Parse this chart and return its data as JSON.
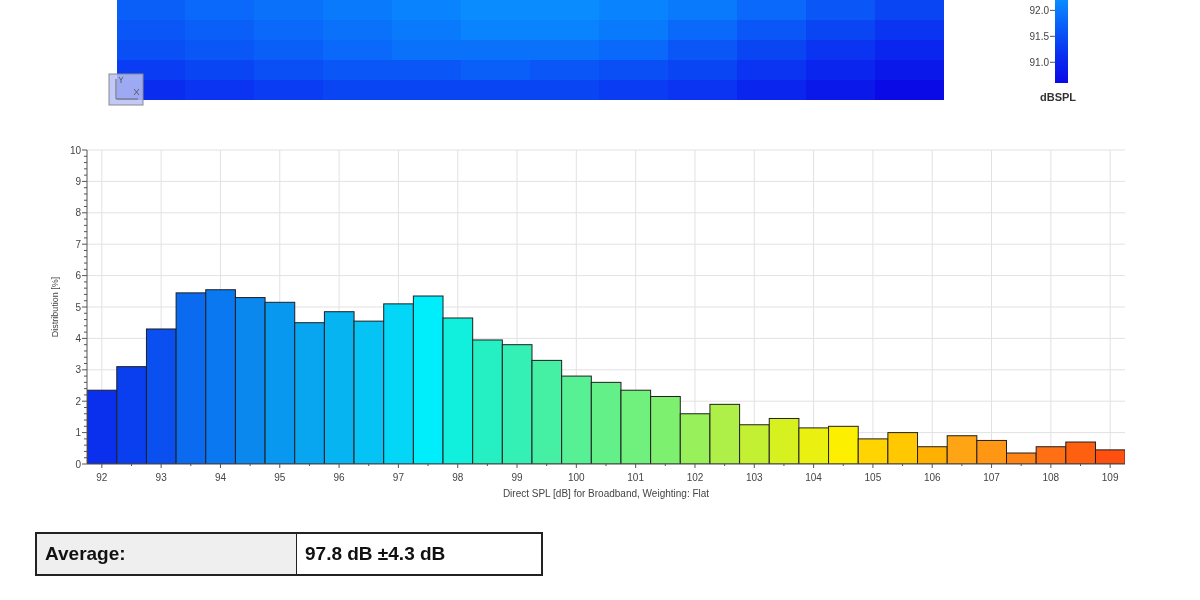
{
  "chart_data": [
    {
      "type": "heatmap",
      "clabel": "dBSPL",
      "categories": [
        null,
        null,
        null,
        null,
        null,
        null,
        null,
        null,
        null,
        null,
        null,
        null
      ],
      "y_categories": [
        null,
        null,
        null,
        null,
        null
      ],
      "cells": [
        [
          91.7,
          91.8,
          91.9,
          92.0,
          92.1,
          92.2,
          92.2,
          92.1,
          92.0,
          91.8,
          91.6,
          91.4
        ],
        [
          91.6,
          91.7,
          91.8,
          91.9,
          92.0,
          92.1,
          92.1,
          92.0,
          91.8,
          91.6,
          91.4,
          91.2
        ],
        [
          91.5,
          91.6,
          91.7,
          91.8,
          91.9,
          91.9,
          91.9,
          91.8,
          91.6,
          91.4,
          91.2,
          91.0
        ],
        [
          91.3,
          91.4,
          91.5,
          91.6,
          91.6,
          91.7,
          91.6,
          91.5,
          91.4,
          91.2,
          91.0,
          90.8
        ],
        [
          91.1,
          91.2,
          91.3,
          91.4,
          91.4,
          91.4,
          91.4,
          91.3,
          91.2,
          91.0,
          90.8,
          90.6
        ]
      ],
      "clim": [
        90.6,
        92.2
      ],
      "cticks": [
        {
          "value": 91,
          "label": "91.0"
        },
        91.5,
        {
          "value": 92,
          "label": "92.0"
        }
      ]
    },
    {
      "type": "histogram",
      "xlabel": "Direct SPL [dB] for Broadband, Weighting: Flat",
      "ylabel": "Distribution [%]",
      "bins": [
        91.75,
        92.25,
        92.75,
        93.25,
        93.75,
        94.25,
        94.75,
        95.25,
        95.75,
        96.25,
        96.75,
        97.25,
        97.75,
        98.25,
        98.75,
        99.25,
        99.75,
        100.25,
        100.75,
        101.25,
        101.75,
        102.25,
        102.75,
        103.25,
        103.75,
        104.25,
        104.75,
        105.25,
        105.75,
        106.25,
        106.75,
        107.25,
        107.75,
        108.25,
        108.75,
        109.25
      ],
      "values": [
        2.35,
        3.1,
        4.3,
        5.45,
        5.55,
        5.3,
        5.15,
        4.5,
        4.85,
        4.55,
        5.1,
        5.35,
        4.65,
        3.95,
        3.8,
        3.3,
        2.8,
        2.6,
        2.35,
        2.15,
        1.6,
        1.9,
        1.25,
        1.45,
        1.15,
        1.2,
        0.8,
        1.0,
        0.55,
        0.9,
        0.75,
        0.35,
        0.55,
        0.7,
        0.45
      ],
      "colors": [
        "#0a30ee",
        "#0a3ff0",
        "#0a50f0",
        "#0a6af0",
        "#0a78f0",
        "#0a88ee",
        "#0898f0",
        "#08a6f0",
        "#06b4f2",
        "#05c4f5",
        "#04d6f8",
        "#00eefc",
        "#10f0dc",
        "#25f0c4",
        "#35f0b4",
        "#45f0a4",
        "#58f094",
        "#64f088",
        "#70f07c",
        "#7ef070",
        "#98f05a",
        "#aef048",
        "#c4f034",
        "#d6f020",
        "#eaf010",
        "#fcf000",
        "#ffd400",
        "#ffc800",
        "#ffb000",
        "#ffa414",
        "#ff9614",
        "#ff8414",
        "#ff7014",
        "#ff6010",
        "#ff5010"
      ],
      "xlim": [
        91.75,
        109.25
      ],
      "xticks": [
        92,
        {
          "value": 92.5,
          "label": null
        },
        93,
        {
          "value": 93.5,
          "label": null
        },
        94,
        {
          "value": 94.5,
          "label": null
        },
        95,
        {
          "value": 95.5,
          "label": null
        },
        96,
        {
          "value": 96.5,
          "label": null
        },
        97,
        {
          "value": 97.5,
          "label": null
        },
        98,
        {
          "value": 98.5,
          "label": null
        },
        99,
        {
          "value": 99.5,
          "label": null
        },
        100,
        {
          "value": 100.5,
          "label": null
        },
        101,
        {
          "value": 101.5,
          "label": null
        },
        102,
        {
          "value": 102.5,
          "label": null
        },
        103,
        {
          "value": 103.5,
          "label": null
        },
        104,
        {
          "value": 104.5,
          "label": null
        },
        105,
        {
          "value": 105.5,
          "label": null
        },
        106,
        {
          "value": 106.5,
          "label": null
        },
        107,
        {
          "value": 107.5,
          "label": null
        },
        108,
        {
          "value": 108.5,
          "label": null
        },
        109
      ],
      "ylim": [
        0,
        10
      ],
      "yticks": [
        0,
        {
          "value": 0.2,
          "label": null
        },
        {
          "value": 0.4,
          "label": null
        },
        {
          "value": 0.6,
          "label": null
        },
        {
          "value": 0.8,
          "label": null
        },
        1,
        {
          "value": 1.2,
          "label": null
        },
        {
          "value": 1.4,
          "label": null
        },
        {
          "value": 1.6,
          "label": null
        },
        {
          "value": 1.8,
          "label": null
        },
        2,
        {
          "value": 2.2,
          "label": null
        },
        {
          "value": 2.4,
          "label": null
        },
        {
          "value": 2.6,
          "label": null
        },
        {
          "value": 2.8,
          "label": null
        },
        3,
        {
          "value": 3.2,
          "label": null
        },
        {
          "value": 3.4,
          "label": null
        },
        {
          "value": 3.6,
          "label": null
        },
        {
          "value": 3.8,
          "label": null
        },
        4,
        {
          "value": 4.2,
          "label": null
        },
        {
          "value": 4.4,
          "label": null
        },
        {
          "value": 4.6,
          "label": null
        },
        {
          "value": 4.8,
          "label": null
        },
        5,
        {
          "value": 5.2,
          "label": null
        },
        {
          "value": 5.4,
          "label": null
        },
        {
          "value": 5.6,
          "label": null
        },
        {
          "value": 5.8,
          "label": null
        },
        6,
        {
          "value": 6.2,
          "label": null
        },
        {
          "value": 6.4,
          "label": null
        },
        {
          "value": 6.6,
          "label": null
        },
        {
          "value": 6.8,
          "label": null
        },
        7,
        {
          "value": 7.2,
          "label": null
        },
        {
          "value": 7.4,
          "label": null
        },
        {
          "value": 7.6,
          "label": null
        },
        {
          "value": 7.8,
          "label": null
        },
        8,
        {
          "value": 8.2,
          "label": null
        },
        {
          "value": 8.4,
          "label": null
        },
        {
          "value": 8.6,
          "label": null
        },
        {
          "value": 8.8,
          "label": null
        },
        9,
        {
          "value": 9.2,
          "label": null
        },
        {
          "value": 9.4,
          "label": null
        },
        {
          "value": 9.6,
          "label": null
        },
        {
          "value": 9.8,
          "label": null
        },
        10
      ],
      "grid": true
    },
    {
      "type": "other",
      "annotations": [
        "Average:",
        "97.8 dB ±4.3 dB"
      ]
    }
  ]
}
